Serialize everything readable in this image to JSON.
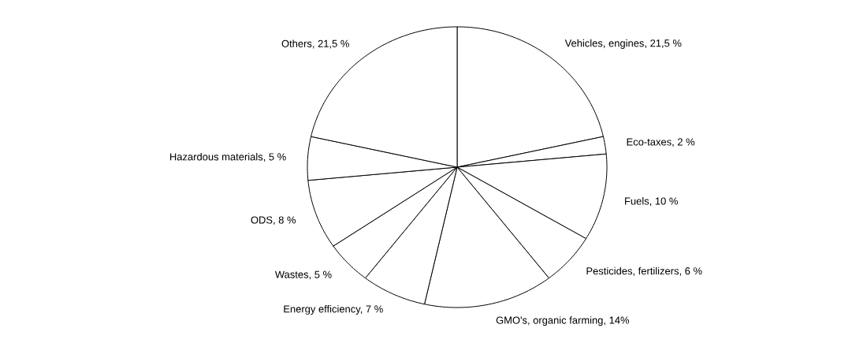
{
  "chart_data": {
    "type": "pie",
    "categories": [
      "Vehicles, engines, 21,5 %",
      "Eco-taxes, 2 %",
      "Fuels, 10 %",
      "Pesticides, fertilizers, 6 %",
      "GMO's, organic farming, 14%",
      "Energy efficiency, 7 %",
      "Wastes, 5 %",
      "ODS, 8 %",
      "Hazardous materials, 5 %",
      "Others, 21,5 %"
    ],
    "values": [
      21.5,
      2,
      10,
      6,
      14,
      7,
      5,
      8,
      5,
      21.5
    ],
    "colors": [
      "#ffffff",
      "#ffffff",
      "#ffffff",
      "#ffffff",
      "#ffffff",
      "#ffffff",
      "#ffffff",
      "#ffffff",
      "#ffffff",
      "#ffffff"
    ]
  }
}
